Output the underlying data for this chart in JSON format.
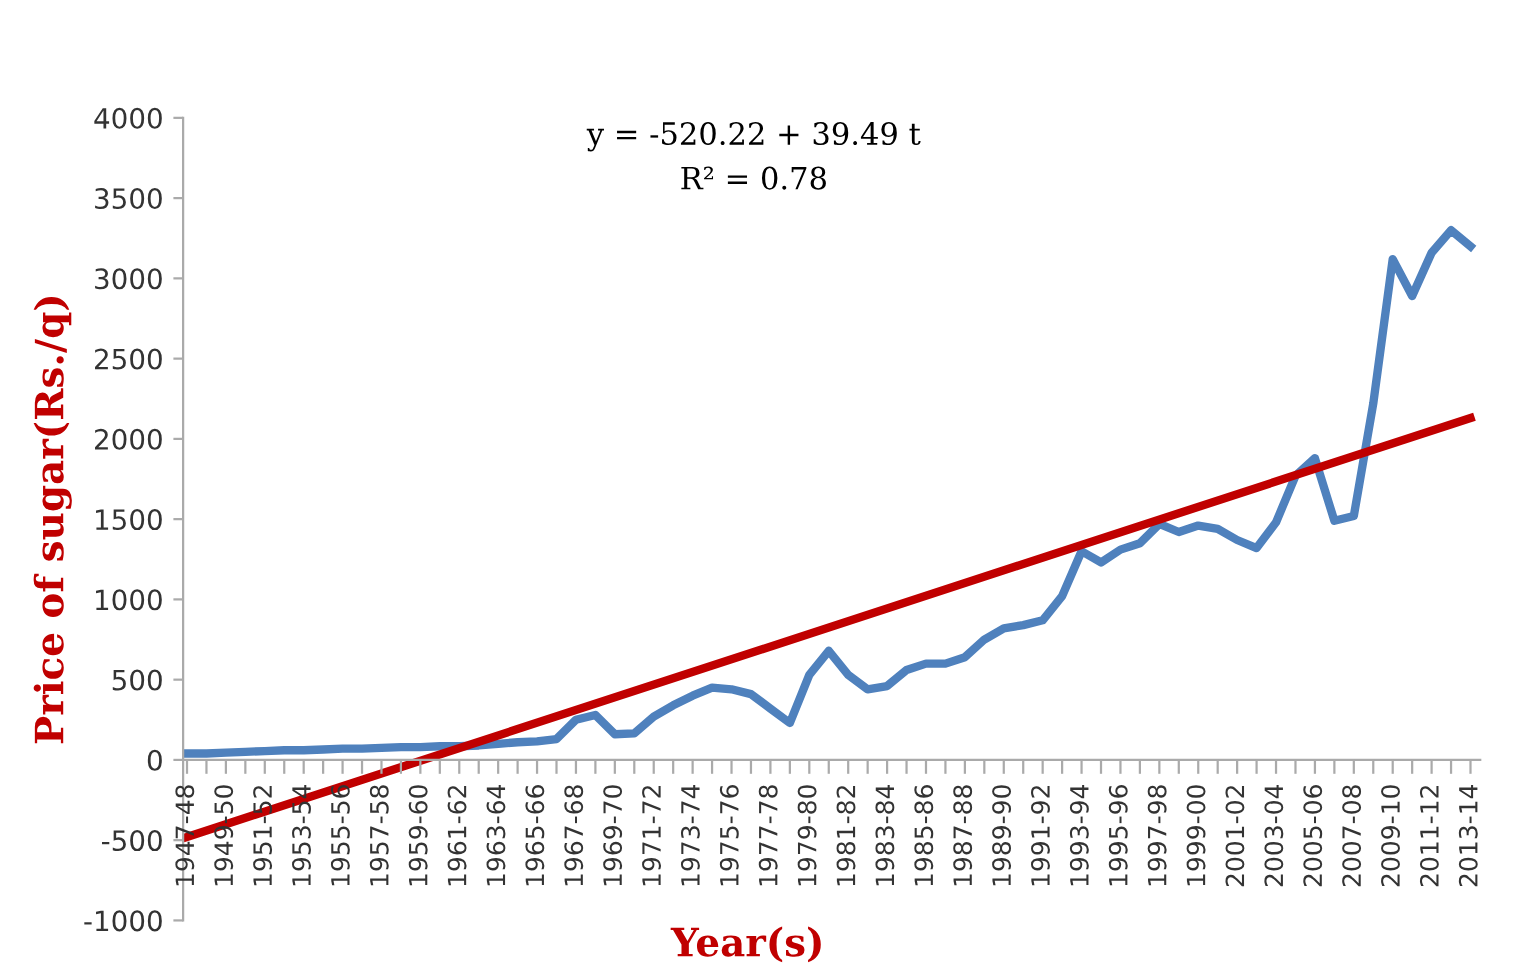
{
  "chart_data": {
    "type": "line",
    "xlabel": "Year(s)",
    "ylabel": "Price of sugar(Rs./q)",
    "categories": [
      "1947-48",
      null,
      "1949-50",
      null,
      "1951-52",
      null,
      "1953-54",
      null,
      "1955-56",
      null,
      "1957-58",
      null,
      "1959-60",
      null,
      "1961-62",
      null,
      "1963-64",
      null,
      "1965-66",
      null,
      "1967-68",
      null,
      "1969-70",
      null,
      "1971-72",
      null,
      "1973-74",
      null,
      "1975-76",
      null,
      "1977-78",
      null,
      "1979-80",
      null,
      "1981-82",
      null,
      "1983-84",
      null,
      "1985-86",
      null,
      "1987-88",
      null,
      "1989-90",
      null,
      "1991-92",
      null,
      "1993-94",
      null,
      "1995-96",
      null,
      "1997-98",
      null,
      "1999-00",
      null,
      "2001-02",
      null,
      "2003-04",
      null,
      "2005-06",
      null,
      "2007-08",
      null,
      "2009-10",
      null,
      "2011-12",
      null,
      "2013-14"
    ],
    "series": [
      {
        "color": "#4f81bd",
        "values": [
          40,
          40,
          45,
          50,
          55,
          60,
          60,
          65,
          70,
          70,
          75,
          80,
          80,
          85,
          85,
          90,
          100,
          110,
          115,
          130,
          250,
          280,
          160,
          165,
          270,
          340,
          400,
          450,
          440,
          410,
          320,
          230,
          530,
          680,
          530,
          440,
          460,
          560,
          600,
          600,
          640,
          750,
          820,
          840,
          870,
          1020,
          1300,
          1230,
          1310,
          1350,
          1470,
          1420,
          1460,
          1440,
          1370,
          1320,
          1480,
          1770,
          1880,
          1490,
          1520,
          2220,
          3120,
          2890,
          3160,
          3300,
          3200
        ]
      },
      {
        "type": "line",
        "color": "#c00000",
        "x": [
          "1947-48",
          "2013-14"
        ],
        "values": [
          -480,
          2130
        ]
      }
    ],
    "ylim": [
      -1000,
      4000
    ],
    "yticks": [
      -1000,
      -500,
      0,
      500,
      1000,
      1500,
      2000,
      2500,
      3000,
      3500,
      4000
    ],
    "grid": false,
    "legend": false,
    "marker": "none",
    "line_style": "solid",
    "annotations": [
      "y = -520.22 + 39.49 t",
      "R² = 0.78"
    ]
  }
}
